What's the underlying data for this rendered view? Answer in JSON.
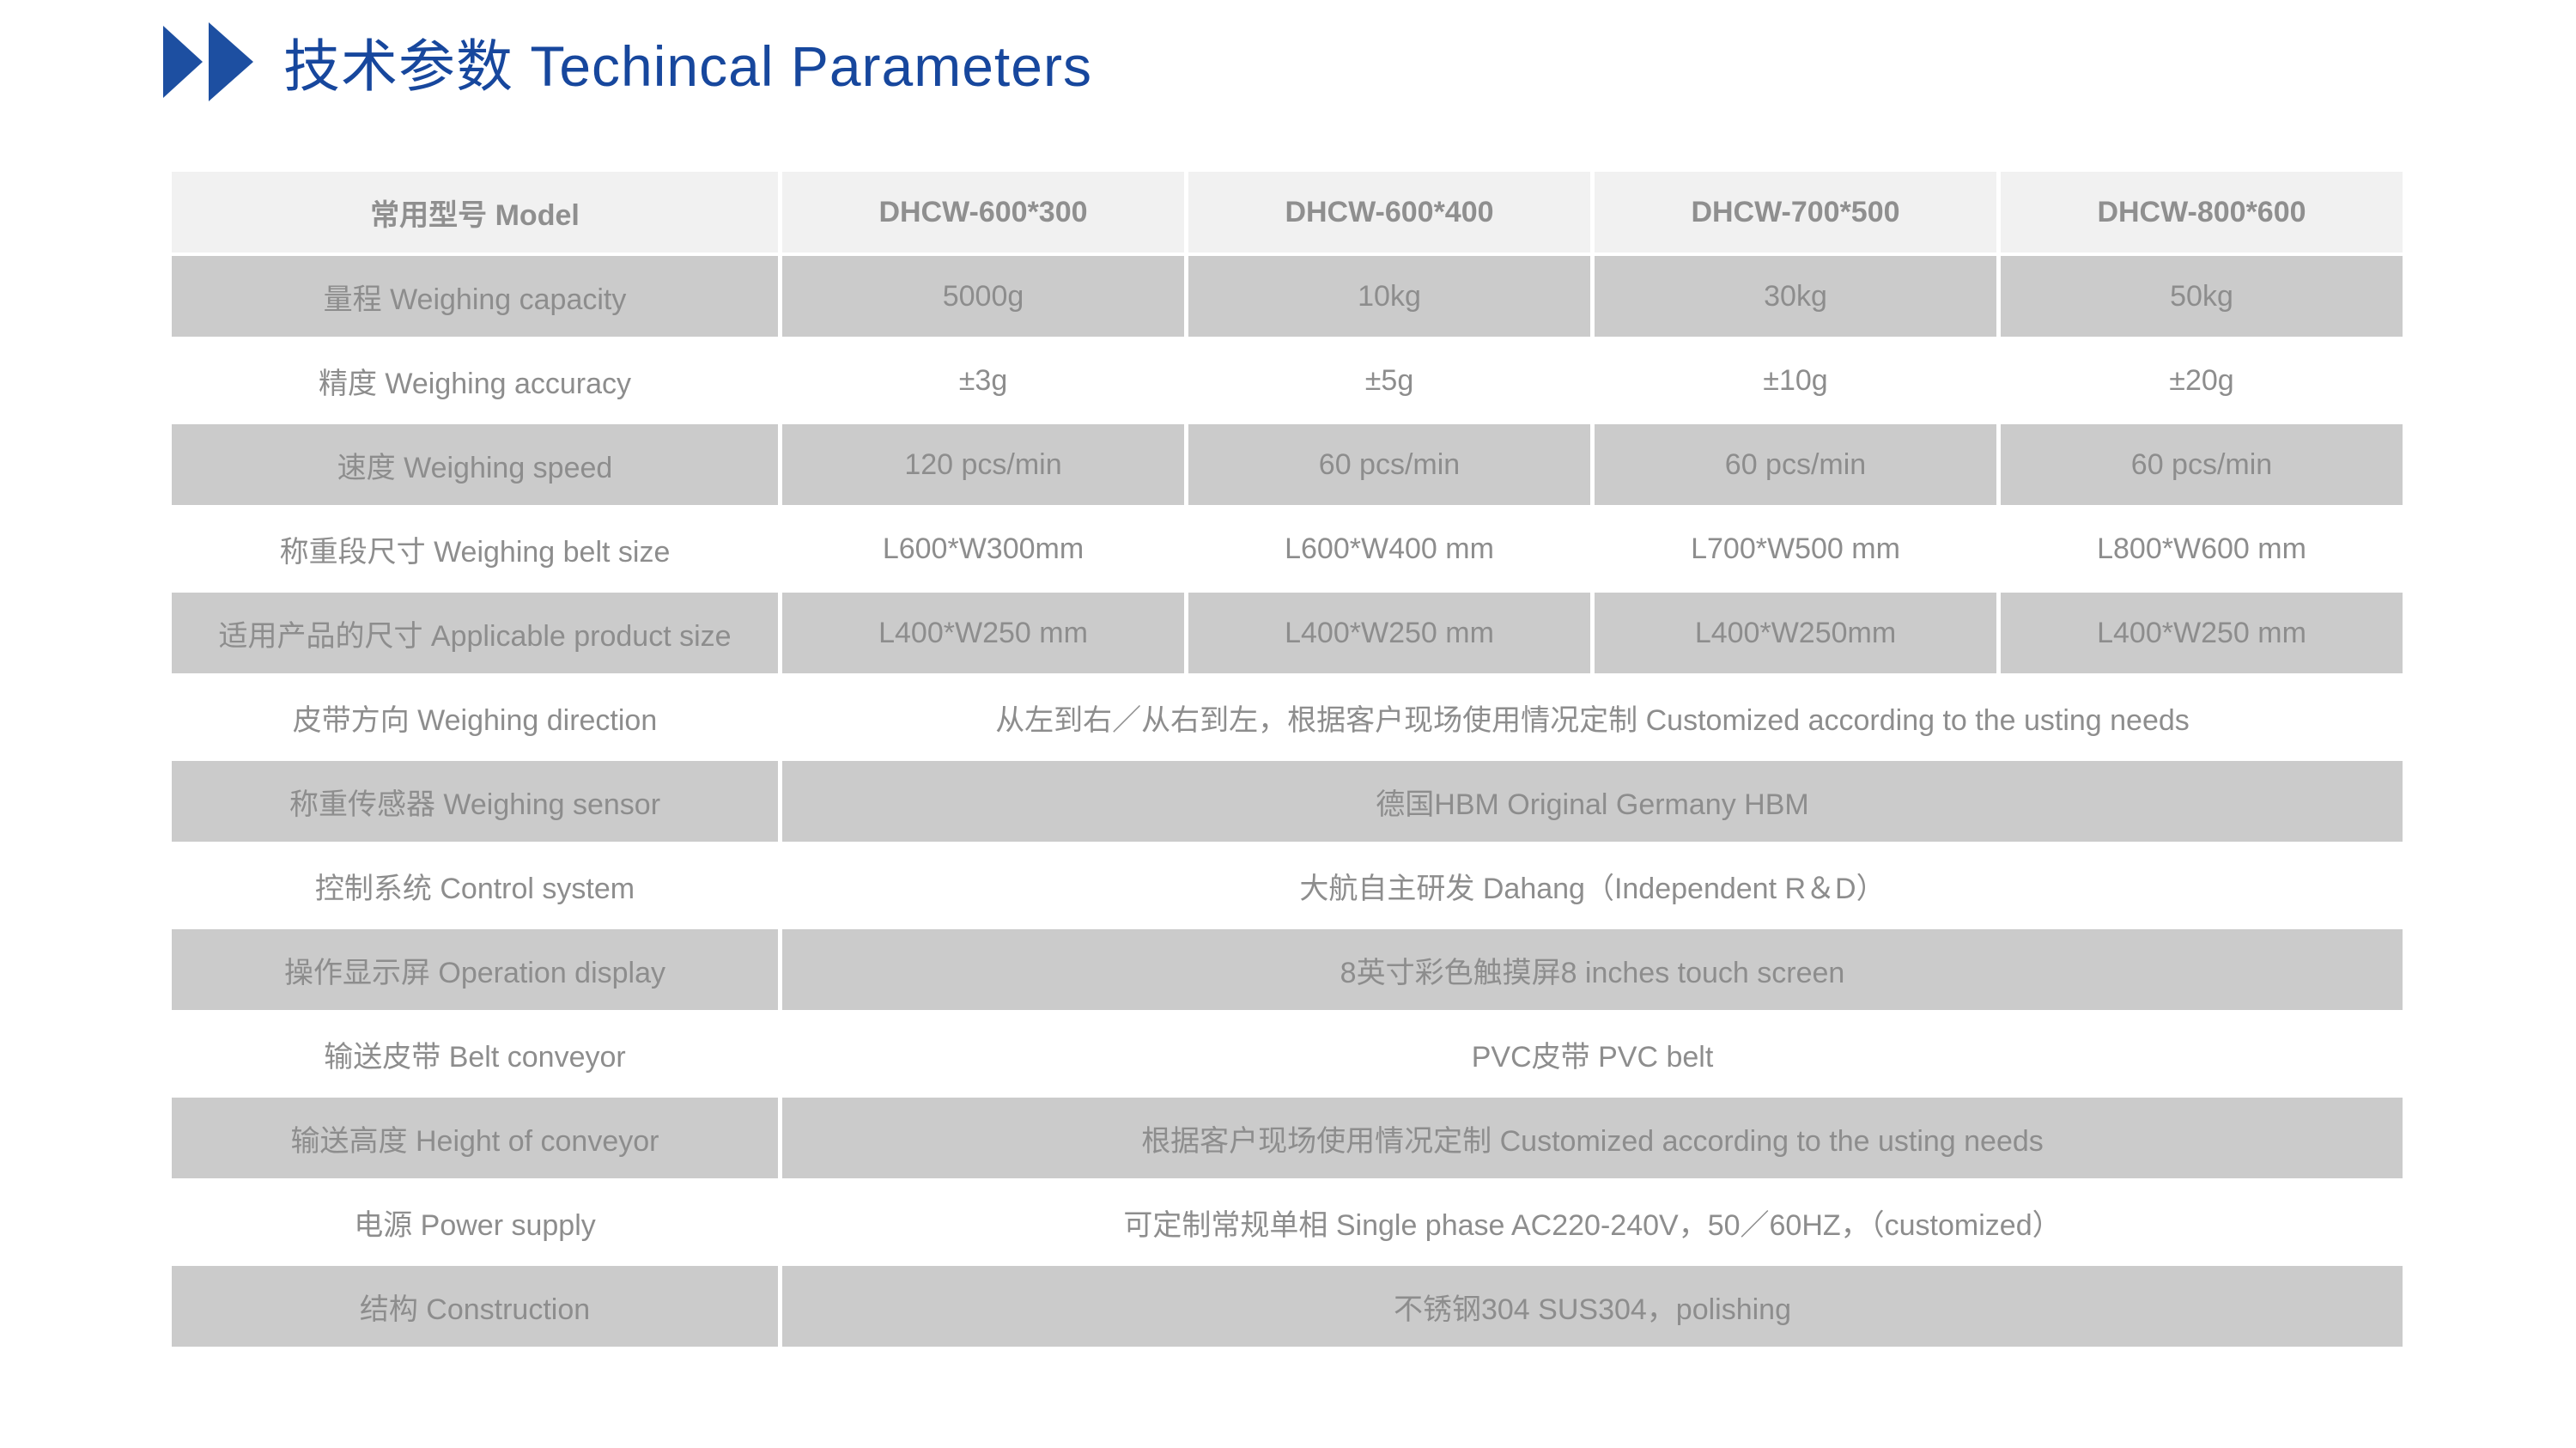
{
  "title": {
    "text": "技术参数 Techincal Parameters"
  },
  "icons": {
    "chevron": "play-style right-pointing triangle"
  },
  "colors": {
    "title_blue": "#17479d",
    "arrow_blue": "#1d4fa1",
    "header_bg": "#f1f1f1",
    "shaded_row_bg": "#cbcbcb",
    "plain_row_bg": "#ffffff",
    "text_gray": "#8d8d8d"
  },
  "table": {
    "header": [
      "常用型号 Model",
      "DHCW-600*300",
      "DHCW-600*400",
      "DHCW-700*500",
      "DHCW-800*600"
    ],
    "rows": [
      {
        "label": "量程 Weighing capacity",
        "values": [
          "5000g",
          "10kg",
          "30kg",
          "50kg"
        ],
        "shaded": true
      },
      {
        "label": "精度 Weighing accuracy",
        "values": [
          "±3g",
          "±5g",
          "±10g",
          "±20g"
        ],
        "shaded": false
      },
      {
        "label": "速度 Weighing speed",
        "values": [
          "120 pcs/min",
          "60 pcs/min",
          "60 pcs/min",
          "60 pcs/min"
        ],
        "shaded": true
      },
      {
        "label": "称重段尺寸 Weighing belt size",
        "values": [
          "L600*W300mm",
          "L600*W400 mm",
          "L700*W500 mm",
          "L800*W600 mm"
        ],
        "shaded": false
      },
      {
        "label": "适用产品的尺寸 Applicable product size",
        "values": [
          "L400*W250 mm",
          "L400*W250 mm",
          "L400*W250mm",
          "L400*W250 mm"
        ],
        "shaded": true
      },
      {
        "label": "皮带方向 Weighing direction",
        "merged": "从左到右／从右到左，根据客户现场使用情况定制 Customized according to the usting needs",
        "shaded": false
      },
      {
        "label": "称重传感器 Weighing sensor",
        "merged": "德国HBM Original Germany HBM",
        "shaded": true
      },
      {
        "label": "控制系统 Control system",
        "merged": "大航自主研发 Dahang（Independent R＆D）",
        "shaded": false
      },
      {
        "label": "操作显示屏 Operation display",
        "merged": "8英寸彩色触摸屏8 inches touch screen",
        "shaded": true
      },
      {
        "label": "输送皮带 Belt conveyor",
        "merged": "PVC皮带 PVC belt",
        "shaded": false
      },
      {
        "label": "输送高度 Height of conveyor",
        "merged": "根据客户现场使用情况定制 Customized according to the usting needs",
        "shaded": true
      },
      {
        "label": "电源 Power supply",
        "merged": "可定制常规单相 Single phase AC220-240V，50／60HZ，（customized）",
        "shaded": false
      },
      {
        "label": "结构 Construction",
        "merged": "不锈钢304 SUS304，polishing",
        "shaded": true
      }
    ]
  }
}
